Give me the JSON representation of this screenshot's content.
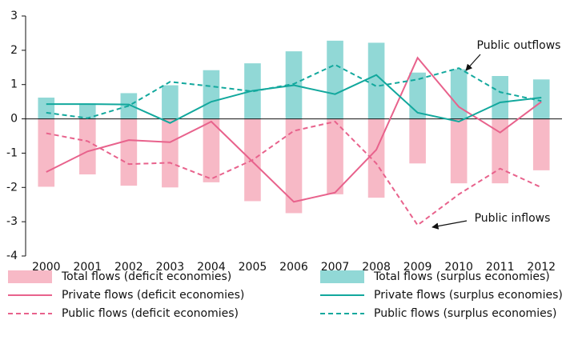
{
  "chart_data": {
    "type": "bar",
    "categories": [
      "2000",
      "2001",
      "2002",
      "2003",
      "2004",
      "2005",
      "2006",
      "2007",
      "2008",
      "2009",
      "2010",
      "2011",
      "2012"
    ],
    "ylim": [
      -4,
      3
    ],
    "yticks": [
      -4,
      -3,
      -2,
      -1,
      0,
      1,
      2,
      3
    ],
    "grid": false,
    "series": [
      {
        "name": "Total flows (deficit economies)",
        "type": "bar",
        "color": "#f7b9c6",
        "dashed": false,
        "values": [
          -1.98,
          -1.62,
          -1.95,
          -2.0,
          -1.85,
          -2.4,
          -2.75,
          -2.2,
          -2.3,
          -1.3,
          -1.88,
          -1.88,
          -1.5
        ]
      },
      {
        "name": "Total flows (surplus economies)",
        "type": "bar",
        "color": "#91d8d6",
        "dashed": false,
        "values": [
          0.62,
          0.45,
          0.75,
          0.98,
          1.42,
          1.62,
          1.97,
          2.28,
          2.22,
          1.35,
          1.45,
          1.25,
          1.15
        ]
      },
      {
        "name": "Private flows (deficit economies)",
        "type": "line",
        "color": "#e8628c",
        "dashed": false,
        "values": [
          -1.55,
          -0.95,
          -0.62,
          -0.68,
          -0.08,
          -1.25,
          -2.42,
          -2.15,
          -0.9,
          1.78,
          0.35,
          -0.4,
          0.5
        ]
      },
      {
        "name": "Private flows (surplus economies)",
        "type": "line",
        "color": "#12a89d",
        "dashed": false,
        "values": [
          0.43,
          0.43,
          0.42,
          -0.12,
          0.5,
          0.82,
          0.98,
          0.72,
          1.28,
          0.18,
          -0.08,
          0.48,
          0.62
        ]
      },
      {
        "name": "Public flows (deficit economies)",
        "type": "line",
        "color": "#e8628c",
        "dashed": true,
        "values": [
          -0.42,
          -0.65,
          -1.32,
          -1.28,
          -1.75,
          -1.2,
          -0.35,
          -0.08,
          -1.3,
          -3.1,
          -2.2,
          -1.45,
          -2.0
        ]
      },
      {
        "name": "Public flows (surplus economies)",
        "type": "line",
        "color": "#12a89d",
        "dashed": true,
        "values": [
          0.18,
          0.02,
          0.38,
          1.08,
          0.95,
          0.8,
          1.02,
          1.58,
          0.95,
          1.15,
          1.48,
          0.78,
          0.52
        ]
      }
    ],
    "annotations": [
      "Public outflows",
      "Public inflows"
    ]
  }
}
